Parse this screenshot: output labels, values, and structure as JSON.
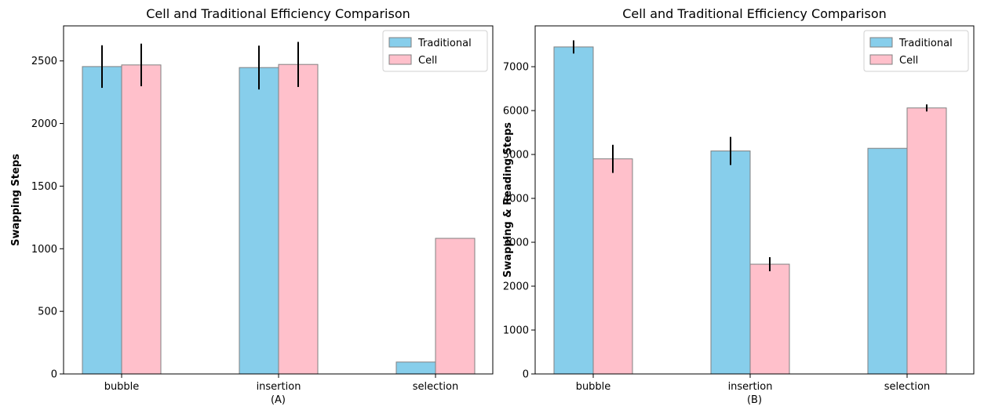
{
  "colors": {
    "traditional": "#87ceeb",
    "cell": "#ffc0cb",
    "bar_edge": "#808080",
    "error_bar": "#000000"
  },
  "chart_data": [
    {
      "type": "bar",
      "title": "Cell and Traditional Efficiency Comparison",
      "ylabel": "Swapping Steps",
      "sublabel": "(A)",
      "categories": [
        "bubble",
        "insertion",
        "selection"
      ],
      "ylim": [
        0,
        2780
      ],
      "yticks": [
        0,
        500,
        1000,
        1500,
        2000,
        2500
      ],
      "legend_position": "top-right",
      "series": [
        {
          "name": "Traditional",
          "color_key": "traditional",
          "values": [
            2455,
            2447,
            95
          ],
          "errors": [
            170,
            175,
            0
          ]
        },
        {
          "name": "Cell",
          "color_key": "cell",
          "values": [
            2468,
            2472,
            1083
          ],
          "errors": [
            170,
            180,
            0
          ]
        }
      ]
    },
    {
      "type": "bar",
      "title": "Cell and Traditional Efficiency Comparison",
      "ylabel": "Swapping & Reading Steps",
      "sublabel": "(B)",
      "categories": [
        "bubble",
        "insertion",
        "selection"
      ],
      "ylim": [
        0,
        7930
      ],
      "yticks": [
        0,
        1000,
        2000,
        3000,
        4000,
        5000,
        6000,
        7000
      ],
      "legend_position": "top-right",
      "series": [
        {
          "name": "Traditional",
          "color_key": "traditional",
          "values": [
            7450,
            5080,
            5140
          ],
          "errors": [
            150,
            320,
            0
          ]
        },
        {
          "name": "Cell",
          "color_key": "cell",
          "values": [
            4900,
            2500,
            6060
          ],
          "errors": [
            320,
            160,
            80
          ]
        }
      ]
    }
  ]
}
